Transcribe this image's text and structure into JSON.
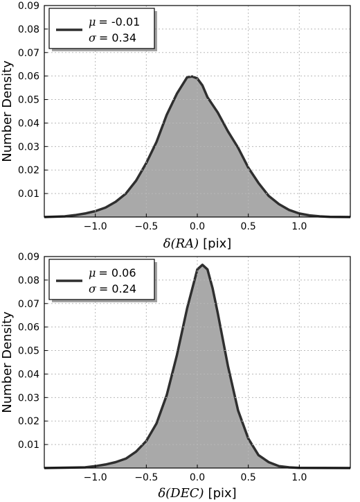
{
  "chart_data": [
    {
      "type": "area",
      "ylabel": "Number Density",
      "xlabel_math": "δ(RA)",
      "xlabel_unit": "[pix]",
      "xlim": [
        -1.5,
        1.5
      ],
      "ylim": [
        0,
        0.09
      ],
      "xticks": [
        -1.0,
        -0.5,
        0.0,
        0.5,
        1.0
      ],
      "xtick_labels": [
        "−1.0",
        "−0.5",
        "0.0",
        "0.5",
        "1.0"
      ],
      "yticks": [
        0.01,
        0.02,
        0.03,
        0.04,
        0.05,
        0.06,
        0.07,
        0.08,
        0.09
      ],
      "ytick_labels": [
        "0.01",
        "0.02",
        "0.03",
        "0.04",
        "0.05",
        "0.06",
        "0.07",
        "0.08",
        "0.09"
      ],
      "grid": true,
      "legend_position": "top-left",
      "legend": {
        "mu_label": "μ",
        "mu_value": "= -0.01",
        "sigma_label": "σ",
        "sigma_value": "= 0.34"
      },
      "fill_color": "#a9a9a9",
      "line_color": "#2f2f2f",
      "series": [
        {
          "x": [
            -1.5,
            -1.3,
            -1.2,
            -1.1,
            -1.0,
            -0.9,
            -0.8,
            -0.7,
            -0.6,
            -0.5,
            -0.4,
            -0.3,
            -0.2,
            -0.1,
            -0.05,
            0.0,
            0.05,
            0.1,
            0.2,
            0.3,
            0.4,
            0.5,
            0.6,
            0.7,
            0.8,
            0.9,
            1.0,
            1.1,
            1.2,
            1.3,
            1.5
          ],
          "y": [
            0.0,
            0.0003,
            0.0008,
            0.0015,
            0.0025,
            0.004,
            0.0065,
            0.01,
            0.0155,
            0.023,
            0.032,
            0.0435,
            0.0525,
            0.0595,
            0.0598,
            0.059,
            0.056,
            0.051,
            0.0445,
            0.0365,
            0.0295,
            0.021,
            0.0145,
            0.009,
            0.0055,
            0.003,
            0.0015,
            0.0007,
            0.0003,
            0.0001,
            0.0
          ]
        }
      ]
    },
    {
      "type": "area",
      "ylabel": "Number Density",
      "xlabel_math": "δ(DEC)",
      "xlabel_unit": "[pix]",
      "xlim": [
        -1.5,
        1.5
      ],
      "ylim": [
        0,
        0.09
      ],
      "xticks": [
        -1.0,
        -0.5,
        0.0,
        0.5,
        1.0
      ],
      "xtick_labels": [
        "−1.0",
        "−0.5",
        "0.0",
        "0.5",
        "1.0"
      ],
      "yticks": [
        0.01,
        0.02,
        0.03,
        0.04,
        0.05,
        0.06,
        0.07,
        0.08,
        0.09
      ],
      "ytick_labels": [
        "0.01",
        "0.02",
        "0.03",
        "0.04",
        "0.05",
        "0.06",
        "0.07",
        "0.08",
        "0.09"
      ],
      "grid": true,
      "legend_position": "top-left",
      "legend": {
        "mu_label": "μ",
        "mu_value": "= 0.06",
        "sigma_label": "σ",
        "sigma_value": "= 0.24"
      },
      "fill_color": "#a9a9a9",
      "line_color": "#2f2f2f",
      "series": [
        {
          "x": [
            -1.5,
            -1.1,
            -1.0,
            -0.9,
            -0.8,
            -0.7,
            -0.6,
            -0.5,
            -0.4,
            -0.3,
            -0.2,
            -0.1,
            0.0,
            0.05,
            0.1,
            0.15,
            0.2,
            0.3,
            0.4,
            0.5,
            0.6,
            0.7,
            0.8,
            0.9,
            1.0,
            1.5
          ],
          "y": [
            0.0,
            0.0003,
            0.0008,
            0.0015,
            0.0025,
            0.004,
            0.007,
            0.0115,
            0.019,
            0.031,
            0.048,
            0.068,
            0.0845,
            0.0865,
            0.0845,
            0.0765,
            0.066,
            0.0435,
            0.0245,
            0.0125,
            0.0055,
            0.0025,
            0.0008,
            0.0003,
            0.0001,
            0.0
          ]
        }
      ]
    }
  ]
}
